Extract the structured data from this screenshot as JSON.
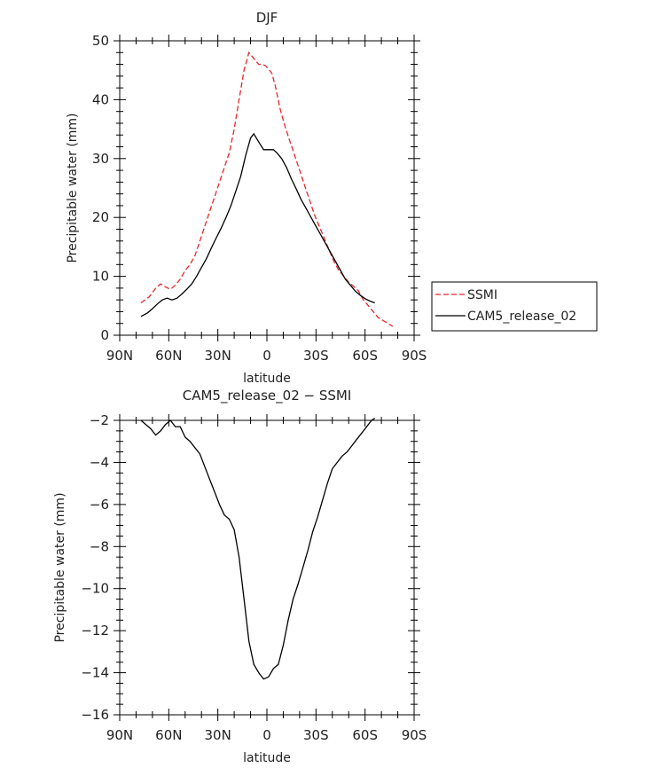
{
  "chart_data": [
    {
      "type": "line",
      "title": "DJF",
      "xlabel": "latitude",
      "ylabel": "Precipitable water (mm)",
      "xlim": [
        90,
        -90
      ],
      "ylim": [
        0,
        50
      ],
      "xticks": [
        90,
        60,
        30,
        0,
        -30,
        -60,
        -90
      ],
      "xtick_labels": [
        "90N",
        "60N",
        "30N",
        "0",
        "30S",
        "60S",
        "90S"
      ],
      "yticks": [
        0,
        10,
        20,
        30,
        40,
        50
      ],
      "ytick_labels": [
        "0",
        "10",
        "20",
        "30",
        "40",
        "50"
      ],
      "legend": {
        "placement": "right"
      },
      "series": [
        {
          "name": "SSMI",
          "color": "#e8262a",
          "style": "dashed",
          "x": [
            77,
            72,
            68,
            65,
            62,
            59,
            56,
            53,
            50,
            47,
            44,
            41,
            38,
            35,
            32,
            29,
            26,
            23,
            20,
            17,
            14,
            11,
            8,
            5,
            3,
            1,
            -1,
            -3,
            -5,
            -8,
            -11,
            -14,
            -17,
            -20,
            -23,
            -26,
            -29,
            -32,
            -35,
            -38,
            -41,
            -44,
            -47,
            -50,
            -53,
            -56,
            -59,
            -62,
            -65,
            -68,
            -71,
            -74,
            -77
          ],
          "values": [
            5.5,
            6.5,
            8.0,
            8.7,
            8.2,
            7.8,
            8.5,
            9.5,
            11.0,
            12.0,
            13.5,
            16.0,
            18.5,
            21.0,
            23.5,
            26.0,
            28.5,
            31.0,
            35.0,
            40.0,
            45.0,
            48.0,
            47.0,
            46.0,
            46.0,
            45.8,
            45.2,
            44.5,
            42.5,
            38.5,
            35.5,
            33.0,
            30.5,
            28.0,
            25.5,
            23.0,
            20.5,
            18.5,
            16.5,
            14.5,
            12.5,
            11.0,
            10.0,
            9.0,
            8.3,
            7.5,
            6.0,
            5.0,
            4.0,
            3.0,
            2.5,
            2.0,
            1.5
          ]
        },
        {
          "name": "CAM5_release_02",
          "color": "#000000",
          "style": "solid",
          "x": [
            77,
            73,
            70,
            67,
            64,
            61,
            58,
            55,
            52,
            49,
            46,
            43,
            40,
            37,
            34,
            31,
            28,
            25,
            22,
            19,
            16,
            13,
            10,
            8,
            5,
            2,
            -1,
            -4,
            -6,
            -9,
            -12,
            -15,
            -18,
            -21,
            -24,
            -27,
            -30,
            -33,
            -36,
            -39,
            -42,
            -45,
            -48,
            -51,
            -54,
            -57,
            -60,
            -63,
            -66
          ],
          "values": [
            3.2,
            3.8,
            4.5,
            5.3,
            6.0,
            6.3,
            6.0,
            6.3,
            7.0,
            7.8,
            8.7,
            10.0,
            11.5,
            13.0,
            14.8,
            16.5,
            18.2,
            20.0,
            22.0,
            24.5,
            27.0,
            30.5,
            33.5,
            34.2,
            32.8,
            31.5,
            31.5,
            31.5,
            31.0,
            30.0,
            28.5,
            26.5,
            24.8,
            23.0,
            21.5,
            20.0,
            18.5,
            17.0,
            15.5,
            14.0,
            12.5,
            11.0,
            9.5,
            8.5,
            7.5,
            6.8,
            6.2,
            5.8,
            5.5
          ]
        }
      ]
    },
    {
      "type": "line",
      "title": "CAM5_release_02 − SSMI",
      "xlabel": "latitude",
      "ylabel": "Precipitable water (mm)",
      "xlim": [
        90,
        -90
      ],
      "ylim": [
        -16,
        -2
      ],
      "xticks": [
        90,
        60,
        30,
        0,
        -30,
        -60,
        -90
      ],
      "xtick_labels": [
        "90N",
        "60N",
        "30N",
        "0",
        "30S",
        "60S",
        "90S"
      ],
      "yticks": [
        -2,
        -4,
        -6,
        -8,
        -10,
        -12,
        -14,
        -16
      ],
      "ytick_labels": [
        "−2",
        "−4",
        "−6",
        "−8",
        "−10",
        "−12",
        "−14",
        "−16"
      ],
      "series": [
        {
          "name": "CAM5_release_02 - SSMI",
          "color": "#000000",
          "style": "solid",
          "x": [
            77,
            74,
            71,
            68,
            65,
            62,
            59,
            56,
            53,
            50,
            47,
            44,
            41,
            38,
            35,
            32,
            29,
            26,
            23,
            20,
            17,
            14,
            11,
            8,
            5,
            2,
            -1,
            -4,
            -7,
            -10,
            -13,
            -16,
            -19,
            -22,
            -25,
            -28,
            -31,
            -34,
            -37,
            -40,
            -43,
            -46,
            -49,
            -52,
            -55,
            -58,
            -61,
            -64,
            -66
          ],
          "values": [
            -2.0,
            -2.2,
            -2.4,
            -2.7,
            -2.5,
            -2.2,
            -2.0,
            -2.3,
            -2.3,
            -2.8,
            -3.0,
            -3.3,
            -3.6,
            -4.2,
            -4.8,
            -5.4,
            -6.0,
            -6.5,
            -6.7,
            -7.2,
            -8.5,
            -10.5,
            -12.5,
            -13.6,
            -14.0,
            -14.3,
            -14.2,
            -13.8,
            -13.6,
            -12.7,
            -11.5,
            -10.5,
            -9.8,
            -9.0,
            -8.2,
            -7.3,
            -6.6,
            -5.8,
            -5.0,
            -4.3,
            -4.0,
            -3.7,
            -3.5,
            -3.2,
            -2.9,
            -2.6,
            -2.3,
            -2.0,
            -1.9
          ]
        }
      ]
    }
  ]
}
